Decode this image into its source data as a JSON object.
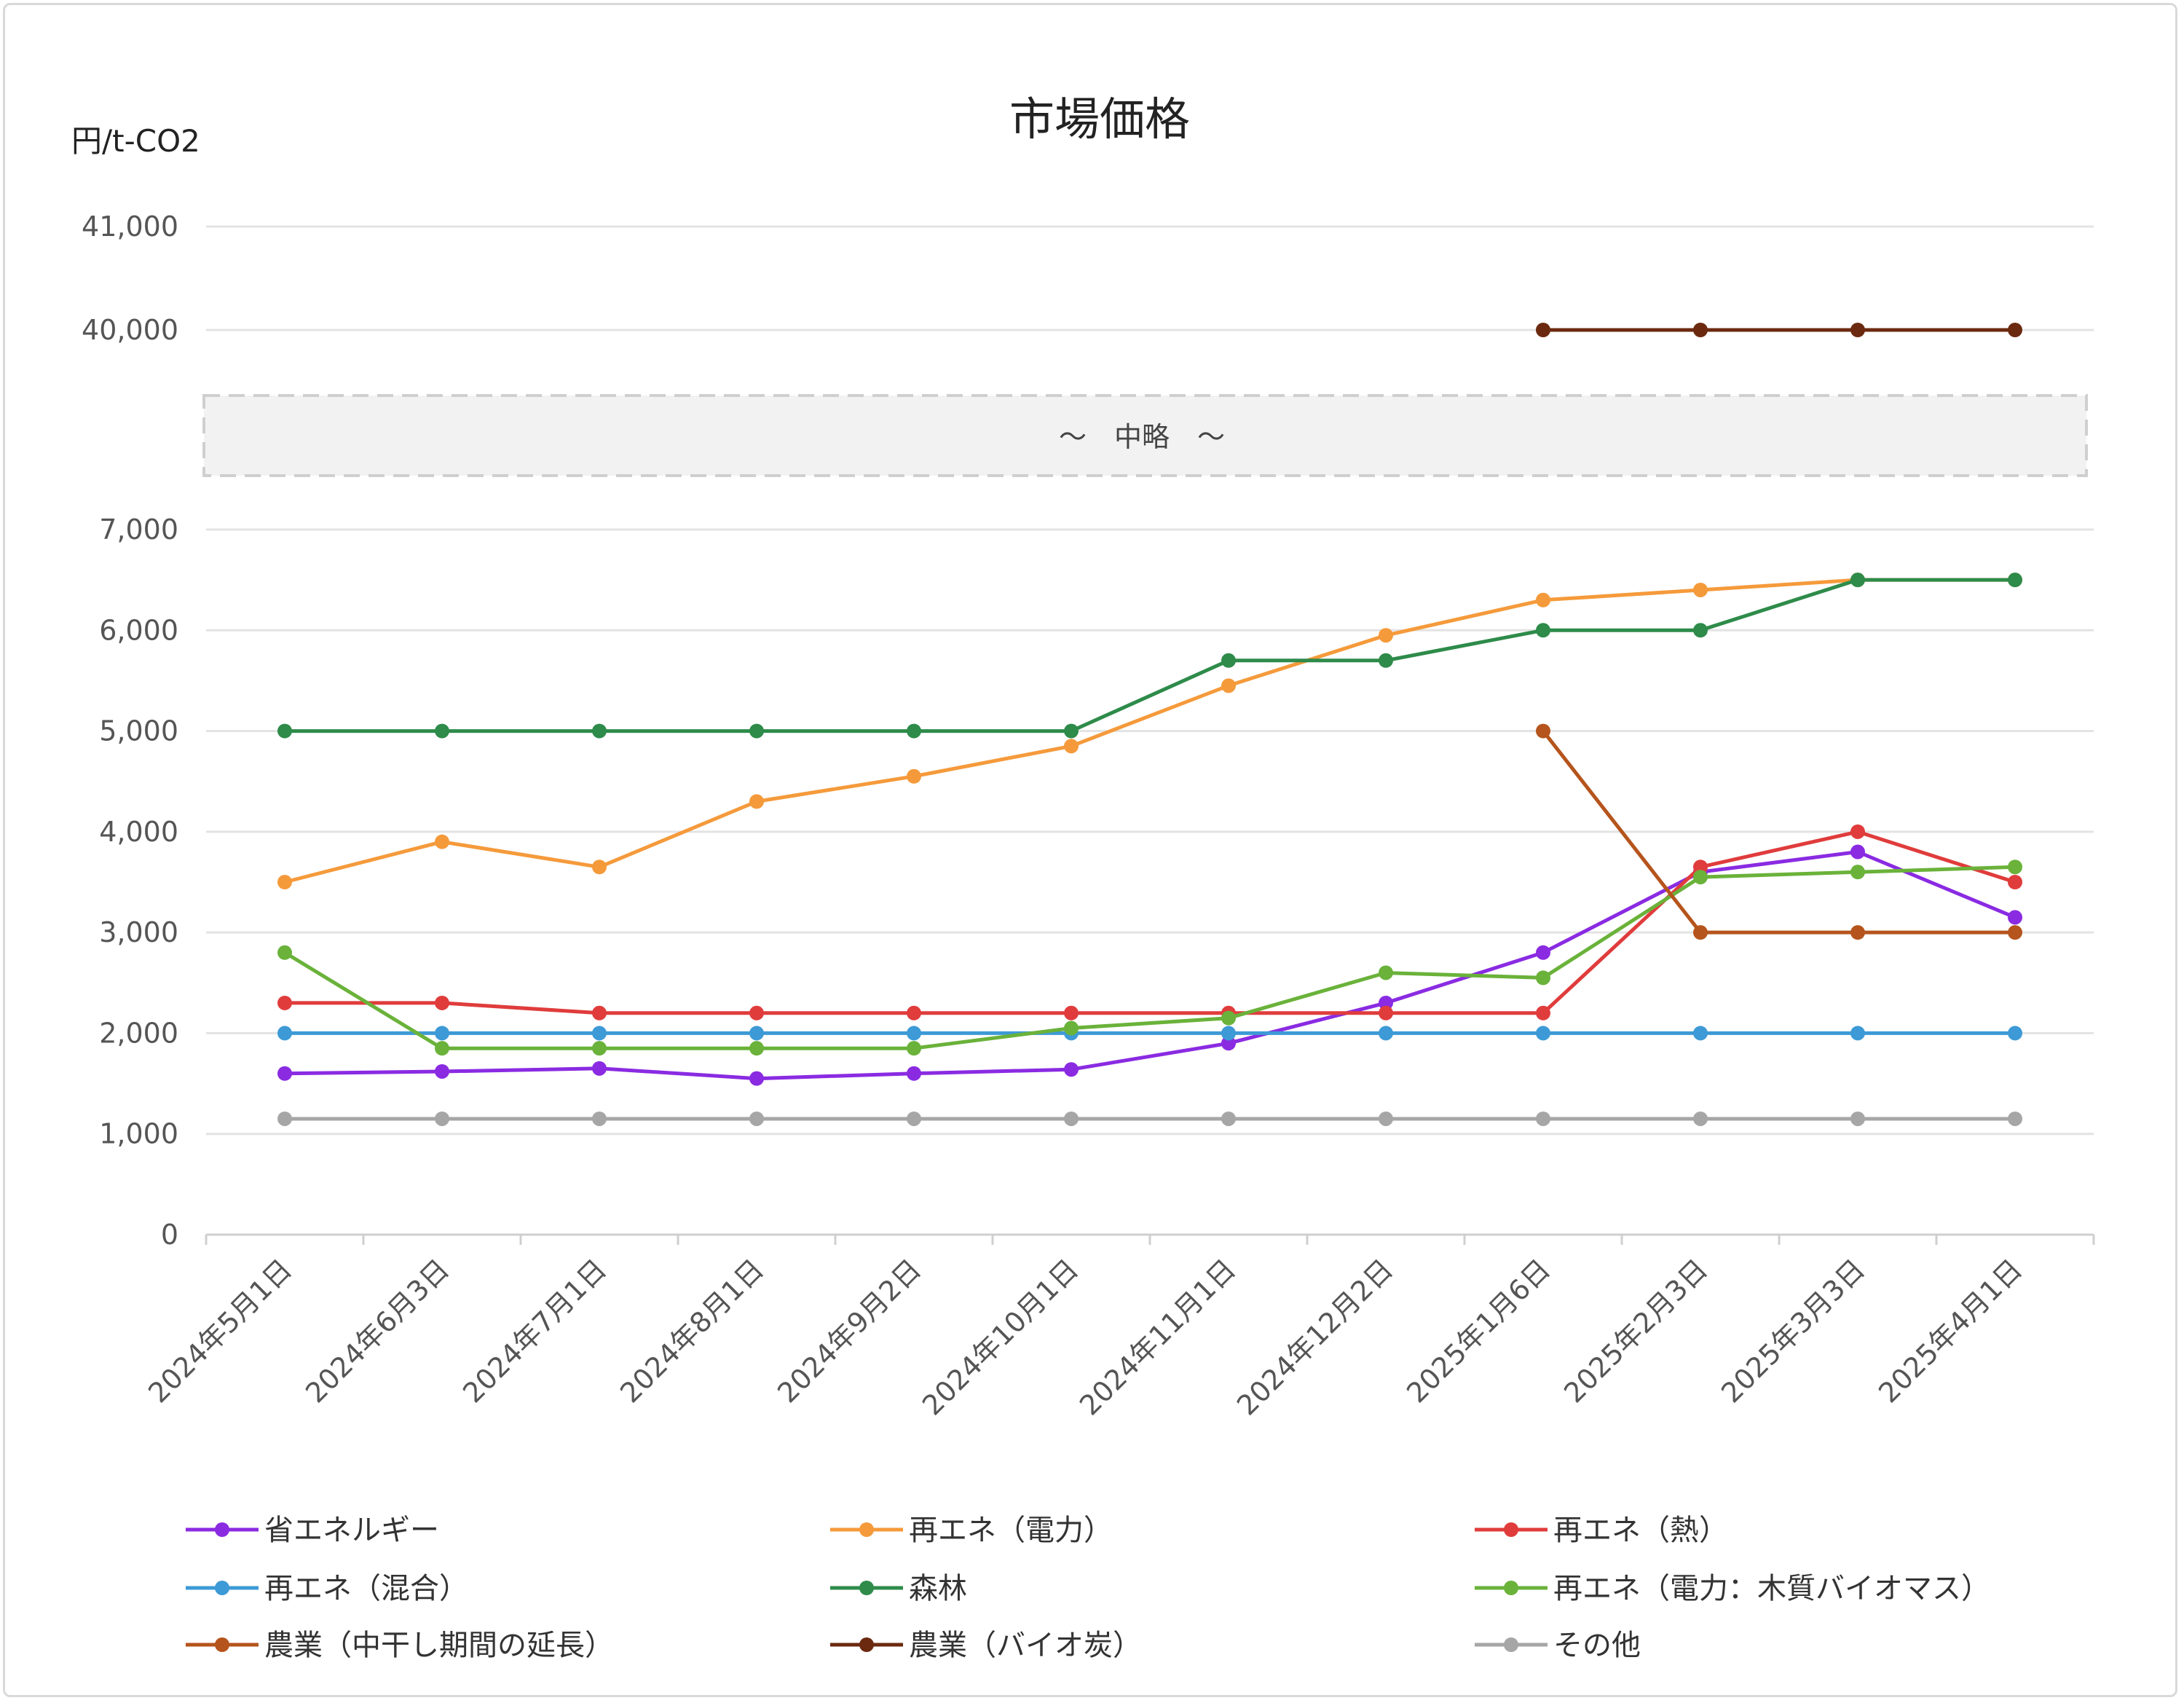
{
  "chart_data": {
    "type": "line",
    "title": "市場価格",
    "ylabel": "円/t-CO2",
    "axis_break_label": "～　中略　～",
    "y_ticks_lower": [
      "0",
      "1,000",
      "2,000",
      "3,000",
      "4,000",
      "5,000",
      "6,000",
      "7,000"
    ],
    "y_ticks_upper": [
      "40,000",
      "41,000"
    ],
    "ylim_lower": [
      0,
      7000
    ],
    "ylim_upper": [
      40000,
      41000
    ],
    "categories": [
      "2024年5月1日",
      "2024年6月3日",
      "2024年7月1日",
      "2024年8月1日",
      "2024年9月2日",
      "2024年10月1日",
      "2024年11月1日",
      "2024年12月2日",
      "2025年1月6日",
      "2025年2月3日",
      "2025年3月3日",
      "2025年4月1日"
    ],
    "grid": true,
    "legend_position": "bottom",
    "series": [
      {
        "name": "省エネルギー",
        "color": "#8a2be2",
        "values": [
          1600,
          1620,
          1650,
          1550,
          1600,
          1640,
          1900,
          2300,
          2800,
          3600,
          3800,
          3150
        ]
      },
      {
        "name": "再エネ（電力）",
        "color": "#f59a3b",
        "values": [
          3500,
          3900,
          3650,
          4300,
          4550,
          4850,
          5450,
          5950,
          6300,
          6400,
          6500,
          6500
        ]
      },
      {
        "name": "再エネ（熱）",
        "color": "#e03c3c",
        "values": [
          2300,
          2300,
          2200,
          2200,
          2200,
          2200,
          2200,
          2200,
          2200,
          3650,
          4000,
          3500
        ]
      },
      {
        "name": "再エネ（混合）",
        "color": "#3d9ad6",
        "values": [
          2000,
          2000,
          2000,
          2000,
          2000,
          2000,
          2000,
          2000,
          2000,
          2000,
          2000,
          2000
        ]
      },
      {
        "name": "森林",
        "color": "#2e8b4a",
        "values": [
          5000,
          5000,
          5000,
          5000,
          5000,
          5000,
          5700,
          5700,
          6000,
          6000,
          6500,
          6500
        ]
      },
      {
        "name": "再エネ（電力：木質バイオマス）",
        "color": "#6ab23a",
        "values": [
          2800,
          1850,
          1850,
          1850,
          1850,
          2050,
          2150,
          2600,
          2550,
          3550,
          3600,
          3650
        ]
      },
      {
        "name": "農業（中干し期間の延長）",
        "color": "#b5541c",
        "values": [
          null,
          null,
          null,
          null,
          null,
          null,
          null,
          null,
          5000,
          3000,
          3000,
          3000
        ]
      },
      {
        "name": "農業（バイオ炭）",
        "color": "#6b2a10",
        "values": [
          null,
          null,
          null,
          null,
          null,
          null,
          null,
          null,
          40000,
          40000,
          40000,
          40000
        ]
      },
      {
        "name": "その他",
        "color": "#a6a6a6",
        "values": [
          1150,
          1150,
          1150,
          1150,
          1150,
          1150,
          1150,
          1150,
          1150,
          1150,
          1150,
          1150
        ]
      }
    ]
  }
}
